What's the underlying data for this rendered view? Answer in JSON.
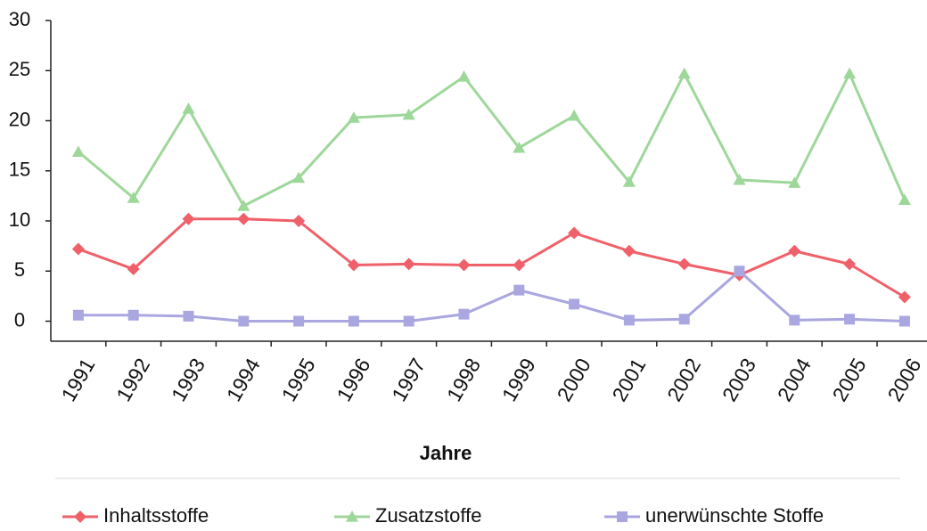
{
  "chart_data": {
    "type": "line",
    "x_label": "Jahre",
    "categories": [
      "1991",
      "1992",
      "1993",
      "1994",
      "1995",
      "1996",
      "1997",
      "1998",
      "1999",
      "2000",
      "2001",
      "2002",
      "2003",
      "2004",
      "2005",
      "2006"
    ],
    "series": [
      {
        "name": "Inhaltsstoffe",
        "color": "#f0606a",
        "marker": "diamond",
        "values": [
          7.2,
          5.2,
          10.2,
          10.2,
          10,
          5.6,
          5.7,
          5.6,
          5.6,
          8.8,
          7,
          5.7,
          4.6,
          7,
          5.7,
          2.4
        ]
      },
      {
        "name": "Zusatzstoffe",
        "color": "#9ed79a",
        "marker": "triangle",
        "values": [
          16.9,
          12.3,
          21.2,
          11.5,
          14.3,
          20.3,
          20.6,
          24.4,
          17.3,
          20.5,
          13.9,
          24.7,
          14.1,
          13.8,
          24.7,
          12.1
        ]
      },
      {
        "name": "unerwünschte Stoffe",
        "color": "#aaa6e0",
        "marker": "square",
        "values": [
          0.6,
          0.6,
          0.5,
          0,
          0,
          0,
          0,
          0.7,
          3.1,
          1.7,
          0.1,
          0.2,
          5,
          0.1,
          0.2,
          0
        ]
      }
    ],
    "ylim": [
      -2,
      30
    ],
    "yticks": [
      0,
      5,
      10,
      15,
      20,
      25,
      30
    ],
    "legend": "bottom"
  }
}
